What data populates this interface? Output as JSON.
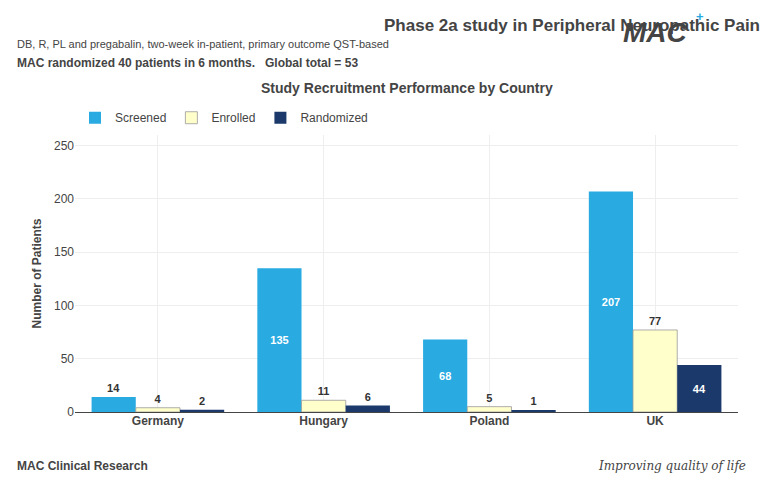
{
  "chart_data": {
    "type": "bar",
    "title": "Phase 2a study in Peripheral Neuropathic Pain",
    "subtitle": "DB, R, PL and pregabalin, two-week in-patient, primary outcome QST-based",
    "annotations": [
      "MAC randomized 40 patients in 6 months.   Global total = 53",
      "Study Recruitment Performance by Country",
      "MAC",
      "+",
      "MAC Clinical Research",
      "Improving quality of life"
    ],
    "ylabel": "Number of Patients",
    "categories": [
      "Germany",
      "Hungary",
      "Poland",
      "UK"
    ],
    "series": [
      {
        "name": "Screened",
        "color": "#29ABE2",
        "values": [
          14,
          135,
          68,
          207
        ]
      },
      {
        "name": "Enrolled",
        "color": "#FFFFCC",
        "values": [
          4,
          11,
          5,
          77
        ]
      },
      {
        "name": "Randomized",
        "color": "#1B3A6B",
        "values": [
          2,
          6,
          1,
          44
        ]
      }
    ],
    "ylim": [
      0,
      260
    ],
    "yticks": [
      0,
      50,
      100,
      150,
      200,
      250
    ],
    "grid": true,
    "legend": "upper left",
    "data_labels": true
  }
}
